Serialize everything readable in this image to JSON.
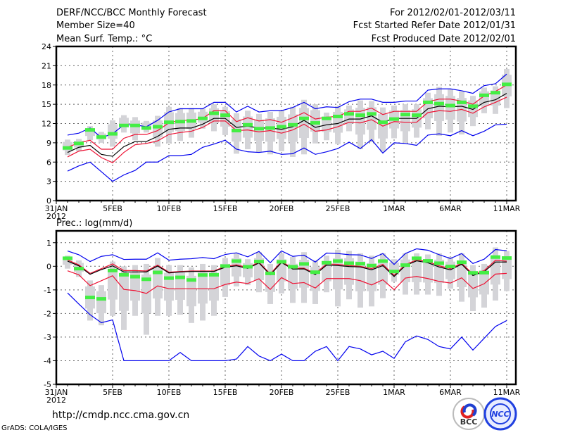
{
  "header": {
    "title": "DERF/NCC/BCC Monthly Forecast",
    "member_size": "Member Size=40",
    "period": "For 2012/02/01-2012/03/11",
    "started": "Fcst Started Refer Date 2012/01/31",
    "produced": "Fcst Produced Date 2012/02/01"
  },
  "footer": {
    "url": "http://cmdp.ncc.cma.gov.cn",
    "grads": "GrADS: COLA/IGES",
    "logo_bcc": "BCC",
    "logo_ncc": "NCC"
  },
  "colors": {
    "max_min": "#0000ee",
    "spread": "#ee1133",
    "mean": "#000000",
    "green": "#44ee44",
    "box": "#d4d4d8"
  },
  "chart_data": [
    {
      "type": "line",
      "title": "Mean Surf. Temp.: °C",
      "xlabel": "",
      "ylabel": "",
      "x_ticks": [
        "31JAN",
        "5FEB",
        "10FEB",
        "15FEB",
        "20FEB",
        "25FEB",
        "1MAR",
        "6MAR",
        "11MAR"
      ],
      "x_tick_days": [
        0,
        5,
        10,
        15,
        20,
        25,
        30,
        35,
        40
      ],
      "x_year": "2012",
      "ylim": [
        0,
        24
      ],
      "y_ticks": [
        "0",
        "3",
        "6",
        "9",
        "12",
        "15",
        "18",
        "21",
        "24"
      ],
      "y_tick_values": [
        0,
        3,
        6,
        9,
        12,
        15,
        18,
        21,
        24
      ],
      "grid": true,
      "days": [
        1,
        2,
        3,
        4,
        5,
        6,
        7,
        8,
        9,
        10,
        11,
        12,
        13,
        14,
        15,
        16,
        17,
        18,
        19,
        20,
        21,
        22,
        23,
        24,
        25,
        26,
        27,
        28,
        29,
        30,
        31,
        32,
        33,
        34,
        35,
        36,
        37,
        38,
        39,
        40
      ],
      "series": [
        {
          "name": "max",
          "color": "#0000ee",
          "values": [
            10.2,
            10.5,
            11.3,
            9.8,
            10.4,
            11.8,
            11.8,
            11.5,
            12.5,
            13.8,
            14.3,
            14.3,
            14.3,
            15.3,
            15.3,
            13.8,
            14.7,
            13.8,
            14.0,
            14.0,
            14.5,
            15.3,
            14.3,
            14.6,
            14.5,
            15.4,
            15.8,
            15.8,
            15.3,
            15.3,
            15.5,
            15.5,
            17.2,
            17.4,
            17.4,
            17.1,
            16.7,
            17.9,
            18.2,
            19.7
          ]
        },
        {
          "name": "upper",
          "color": "#ee1133",
          "values": [
            8.3,
            9.0,
            9.4,
            8.0,
            8.0,
            9.7,
            10.3,
            10.3,
            10.9,
            12.1,
            12.5,
            12.5,
            12.8,
            14.0,
            14.0,
            12.3,
            12.9,
            12.4,
            12.6,
            12.2,
            12.9,
            13.7,
            12.7,
            13.0,
            13.1,
            13.9,
            13.9,
            14.4,
            13.4,
            13.9,
            13.9,
            13.9,
            15.4,
            15.8,
            15.8,
            15.5,
            15.0,
            16.3,
            17.0,
            18.0
          ]
        },
        {
          "name": "mean",
          "color": "#000000",
          "values": [
            7.5,
            8.3,
            8.6,
            7.2,
            6.9,
            8.4,
            9.2,
            9.2,
            10.0,
            11.1,
            11.3,
            11.3,
            11.9,
            12.8,
            12.8,
            11.4,
            11.6,
            11.3,
            11.3,
            11.1,
            11.5,
            12.5,
            11.4,
            11.8,
            12.0,
            12.7,
            12.7,
            13.2,
            12.2,
            12.8,
            12.8,
            12.8,
            14.3,
            14.7,
            14.6,
            14.7,
            14.2,
            15.3,
            15.7,
            16.7
          ]
        },
        {
          "name": "lower",
          "color": "#ee1133",
          "values": [
            6.8,
            7.7,
            8.0,
            6.7,
            5.9,
            7.5,
            8.7,
            8.9,
            9.3,
            10.3,
            10.6,
            10.8,
            11.4,
            12.4,
            12.4,
            10.9,
            11.0,
            10.7,
            10.9,
            10.5,
            11.0,
            11.9,
            10.8,
            11.0,
            11.5,
            12.2,
            12.1,
            12.6,
            11.6,
            12.3,
            12.2,
            12.2,
            13.7,
            14.0,
            13.9,
            14.2,
            13.6,
            14.6,
            15.3,
            16.1
          ]
        },
        {
          "name": "min",
          "color": "#0000ee",
          "values": [
            4.6,
            5.4,
            6.0,
            4.5,
            3.0,
            4.0,
            4.7,
            6.0,
            6.0,
            7.0,
            7.0,
            7.2,
            8.3,
            8.8,
            9.4,
            8.0,
            7.6,
            7.5,
            7.7,
            7.2,
            7.3,
            8.2,
            7.2,
            7.6,
            8.1,
            9.1,
            8.1,
            9.5,
            7.4,
            9.0,
            8.9,
            8.6,
            10.2,
            10.4,
            10.1,
            10.9,
            10.1,
            10.8,
            11.8,
            11.9
          ]
        }
      ],
      "marks": [
        8.2,
        8.9,
        11.0,
        9.9,
        10.4,
        11.7,
        11.7,
        11.3,
        11.5,
        12.2,
        12.3,
        12.4,
        12.8,
        13.6,
        13.3,
        10.9,
        11.8,
        11.2,
        11.3,
        11.5,
        11.8,
        12.8,
        12.1,
        12.8,
        13.1,
        13.5,
        13.3,
        13.5,
        12.2,
        12.7,
        13.4,
        13.3,
        15.3,
        15.1,
        14.8,
        15.3,
        14.7,
        16.4,
        16.8,
        18.1
      ],
      "ranges": [
        [
          7.1,
          9.5
        ],
        [
          7.7,
          9.6
        ],
        [
          9.4,
          11.6
        ],
        [
          9.0,
          10.7
        ],
        [
          8.4,
          12.5
        ],
        [
          10.6,
          13.3
        ],
        [
          9.4,
          13.0
        ],
        [
          10.6,
          12.4
        ],
        [
          8.4,
          13.2
        ],
        [
          9.0,
          14.6
        ],
        [
          9.3,
          14.4
        ],
        [
          9.8,
          14.4
        ],
        [
          11.2,
          14.3
        ],
        [
          10.8,
          15.0
        ],
        [
          10.2,
          14.6
        ],
        [
          7.3,
          13.6
        ],
        [
          8.0,
          14.0
        ],
        [
          7.5,
          13.5
        ],
        [
          7.2,
          13.8
        ],
        [
          7.7,
          14.0
        ],
        [
          6.8,
          14.6
        ],
        [
          7.2,
          15.7
        ],
        [
          8.9,
          15.0
        ],
        [
          9.4,
          13.7
        ],
        [
          8.8,
          14.7
        ],
        [
          10.8,
          14.8
        ],
        [
          8.0,
          15.6
        ],
        [
          9.1,
          15.5
        ],
        [
          7.6,
          14.5
        ],
        [
          9.7,
          14.8
        ],
        [
          9.0,
          15.0
        ],
        [
          9.8,
          15.0
        ],
        [
          11.1,
          16.8
        ],
        [
          10.1,
          17.7
        ],
        [
          10.6,
          17.3
        ],
        [
          10.3,
          17.0
        ],
        [
          11.6,
          16.3
        ],
        [
          13.6,
          17.6
        ],
        [
          13.5,
          17.8
        ],
        [
          14.4,
          20.5
        ]
      ]
    },
    {
      "type": "line",
      "title": "Prec.: log(mm/d)",
      "xlabel": "",
      "ylabel": "",
      "x_ticks": [
        "31JAN",
        "5FEB",
        "10FEB",
        "15FEB",
        "20FEB",
        "25FEB",
        "1MAR",
        "6MAR",
        "11MAR"
      ],
      "x_tick_days": [
        0,
        5,
        10,
        15,
        20,
        25,
        30,
        35,
        40
      ],
      "x_year": "2012",
      "ylim": [
        -5,
        1.5
      ],
      "y_ticks": [
        "-5",
        "-4",
        "-3",
        "-2",
        "-1",
        "0",
        "1"
      ],
      "y_tick_values": [
        -5,
        -4,
        -3,
        -2,
        -1,
        0,
        1
      ],
      "grid": true,
      "days": [
        1,
        2,
        3,
        4,
        5,
        6,
        7,
        8,
        9,
        10,
        11,
        12,
        13,
        14,
        15,
        16,
        17,
        18,
        19,
        20,
        21,
        22,
        23,
        24,
        25,
        26,
        27,
        28,
        29,
        30,
        31,
        32,
        33,
        34,
        35,
        36,
        37,
        38,
        39,
        40
      ],
      "series": [
        {
          "name": "max",
          "color": "#0000ee",
          "values": [
            0.65,
            0.49,
            0.2,
            0.42,
            0.49,
            0.29,
            0.3,
            0.3,
            0.57,
            0.26,
            0.3,
            0.32,
            0.37,
            0.32,
            0.5,
            0.57,
            0.4,
            0.63,
            0.15,
            0.65,
            0.42,
            0.47,
            0.18,
            0.56,
            0.54,
            0.49,
            0.48,
            0.33,
            0.54,
            0.08,
            0.54,
            0.74,
            0.68,
            0.49,
            0.33,
            0.54,
            0.12,
            0.3,
            0.71,
            0.66
          ]
        },
        {
          "name": "upper",
          "color": "#ee1133",
          "values": [
            0.27,
            0.06,
            -0.3,
            -0.1,
            0.1,
            -0.18,
            -0.18,
            -0.2,
            0.05,
            -0.25,
            -0.22,
            -0.2,
            -0.2,
            -0.2,
            0.0,
            0.06,
            -0.05,
            0.17,
            -0.32,
            0.2,
            -0.08,
            -0.08,
            -0.3,
            0.1,
            0.08,
            0.03,
            0.0,
            -0.1,
            0.08,
            -0.38,
            0.07,
            0.27,
            0.2,
            0.02,
            -0.1,
            0.13,
            -0.33,
            -0.18,
            0.25,
            0.22
          ]
        },
        {
          "name": "mean",
          "color": "#000000",
          "values": [
            0.22,
            0.02,
            -0.34,
            -0.14,
            0.02,
            -0.24,
            -0.24,
            -0.24,
            0.01,
            -0.28,
            -0.24,
            -0.22,
            -0.22,
            -0.22,
            -0.04,
            0.02,
            -0.09,
            0.14,
            -0.36,
            0.16,
            -0.12,
            -0.11,
            -0.35,
            0.05,
            0.03,
            -0.01,
            -0.03,
            -0.15,
            0.03,
            -0.43,
            0.03,
            0.23,
            0.15,
            -0.03,
            -0.15,
            0.09,
            -0.39,
            -0.23,
            0.18,
            0.18
          ]
        },
        {
          "name": "lower",
          "color": "#ee1133",
          "values": [
            -0.19,
            -0.36,
            -0.82,
            -0.61,
            -0.4,
            -0.98,
            -1.03,
            -1.15,
            -0.83,
            -0.95,
            -0.95,
            -0.95,
            -0.95,
            -0.95,
            -0.77,
            -0.67,
            -0.73,
            -0.53,
            -0.98,
            -0.48,
            -0.73,
            -0.69,
            -0.92,
            -0.52,
            -0.52,
            -0.52,
            -0.61,
            -0.79,
            -0.57,
            -0.99,
            -0.5,
            -0.43,
            -0.52,
            -0.64,
            -0.71,
            -0.49,
            -0.94,
            -0.74,
            -0.33,
            -0.3
          ]
        },
        {
          "name": "min",
          "color": "#0000ee",
          "values": [
            -1.13,
            -1.6,
            -2.05,
            -2.39,
            -2.27,
            -4.0,
            -4.0,
            -4.0,
            -4.0,
            -4.0,
            -3.65,
            -4.0,
            -4.0,
            -4.0,
            -4.0,
            -3.93,
            -3.4,
            -3.8,
            -4.0,
            -3.72,
            -4.0,
            -4.0,
            -3.6,
            -3.4,
            -4.0,
            -3.4,
            -3.5,
            -3.75,
            -3.6,
            -3.9,
            -3.2,
            -2.95,
            -3.1,
            -3.4,
            -3.5,
            -3.0,
            -3.55,
            -3.05,
            -2.55,
            -2.3
          ]
        }
      ],
      "marks": [
        0.34,
        -0.1,
        -1.32,
        -1.38,
        -0.18,
        -0.36,
        -0.44,
        -0.55,
        -0.26,
        -0.5,
        -0.47,
        -0.58,
        -0.37,
        -0.36,
        0.01,
        0.22,
        -0.02,
        0.2,
        -0.3,
        0.19,
        -0.02,
        0.1,
        -0.25,
        0.15,
        0.22,
        0.13,
        0.11,
        0.03,
        0.22,
        -0.22,
        0.05,
        0.34,
        0.23,
        0.13,
        -0.01,
        0.17,
        -0.28,
        -0.27,
        0.39,
        0.35
      ],
      "ranges": [
        [
          -0.1,
          0.45
        ],
        [
          -0.45,
          0.25
        ],
        [
          -2.3,
          -0.6
        ],
        [
          -2.5,
          -0.8
        ],
        [
          -2.1,
          0.2
        ],
        [
          -2.7,
          0.0
        ],
        [
          -2.1,
          0.05
        ],
        [
          -2.9,
          0.1
        ],
        [
          -2.1,
          0.35
        ],
        [
          -2.1,
          0.05
        ],
        [
          -2.05,
          0.05
        ],
        [
          -2.4,
          -0.05
        ],
        [
          -2.3,
          0.1
        ],
        [
          -2.1,
          0.05
        ],
        [
          -1.3,
          0.35
        ],
        [
          -0.85,
          0.55
        ],
        [
          -0.8,
          0.3
        ],
        [
          -1.1,
          0.6
        ],
        [
          -1.6,
          0.1
        ],
        [
          -1.15,
          0.55
        ],
        [
          -1.55,
          0.4
        ],
        [
          -1.55,
          0.6
        ],
        [
          -1.6,
          0.25
        ],
        [
          -1.1,
          0.45
        ],
        [
          -1.7,
          0.7
        ],
        [
          -1.4,
          0.65
        ],
        [
          -1.75,
          0.55
        ],
        [
          -1.7,
          0.45
        ],
        [
          -1.35,
          0.55
        ],
        [
          -0.65,
          0.3
        ],
        [
          -1.2,
          0.55
        ],
        [
          -1.2,
          0.55
        ],
        [
          -1.2,
          0.5
        ],
        [
          -1.25,
          0.55
        ],
        [
          -0.95,
          0.4
        ],
        [
          -1.5,
          0.55
        ],
        [
          -1.9,
          0.05
        ],
        [
          -1.75,
          0.1
        ],
        [
          -1.45,
          0.8
        ],
        [
          -1.05,
          0.65
        ]
      ]
    }
  ]
}
